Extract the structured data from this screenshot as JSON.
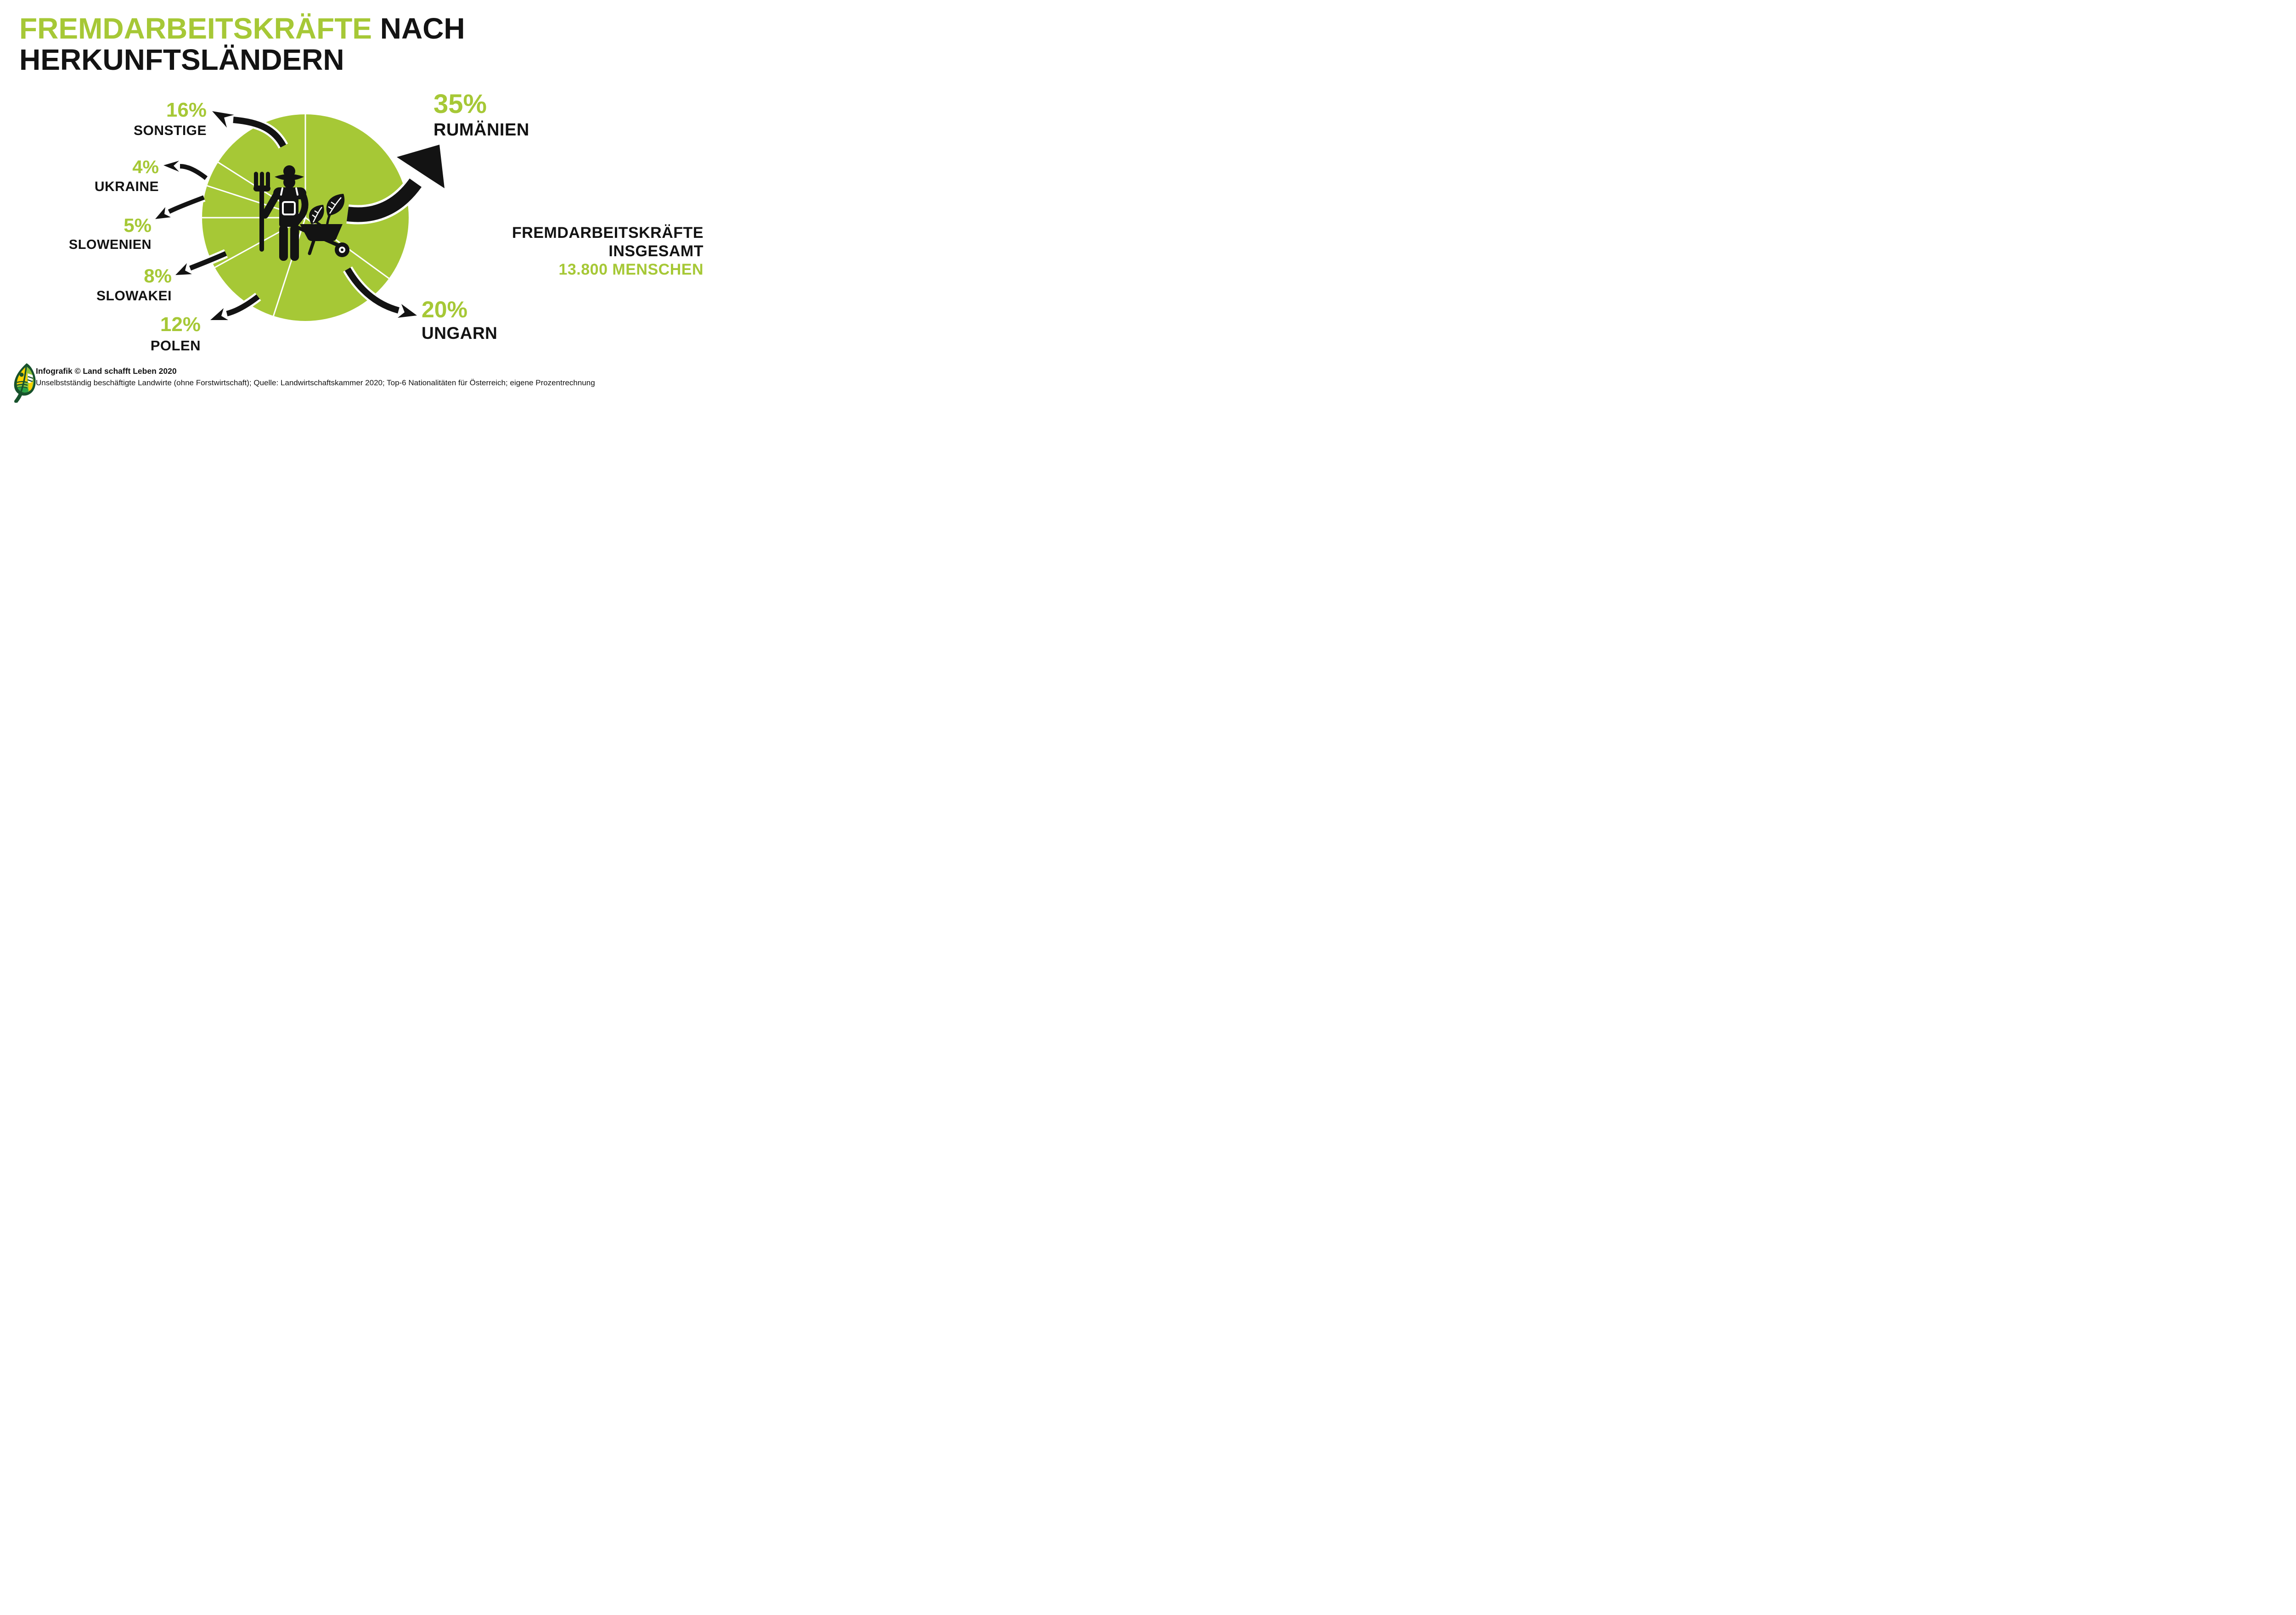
{
  "title": {
    "green": "FREMDARBEITSKRÄFTE",
    "black_rest": " NACH",
    "line2": "HERKUNFTSLÄNDERN"
  },
  "chart_data": {
    "type": "pie",
    "title": "FREMDARBEITSKRÄFTE NACH HERKUNFTSLÄNDERN",
    "unit": "percent",
    "start_angle_deg": 0,
    "direction": "clockwise",
    "grid": false,
    "legend_position": "around-pie",
    "slices": [
      {
        "label": "RUMÄNIEN",
        "value": 35,
        "pct_label": "35%"
      },
      {
        "label": "UNGARN",
        "value": 20,
        "pct_label": "20%"
      },
      {
        "label": "POLEN",
        "value": 12,
        "pct_label": "12%"
      },
      {
        "label": "SLOWAKEI",
        "value": 8,
        "pct_label": "8%"
      },
      {
        "label": "SLOWENIEN",
        "value": 5,
        "pct_label": "5%"
      },
      {
        "label": "UKRAINE",
        "value": 4,
        "pct_label": "4%"
      },
      {
        "label": "SONSTIGE",
        "value": 16,
        "pct_label": "16%"
      }
    ],
    "total": {
      "line1": "FREMDARBEITSKRÄFTE",
      "line2": "INSGESAMT",
      "line3": "13.800 MENSCHEN",
      "value": 13800,
      "unit_label": "Menschen"
    },
    "center_icon": "farmer-with-pitchfork-and-wheelbarrow-icon",
    "colors": {
      "pie_green": "#a6c836",
      "accent_green": "#a6c836",
      "text_black": "#131313",
      "divider_white": "#ffffff"
    }
  },
  "footer": {
    "logo_icon": "land-schafft-leben-leaf-logo",
    "credit": "Infografik © Land schafft Leben 2020",
    "source": "Unselbstständig beschäftigte Landwirte (ohne Forstwirtschaft); Quelle: Landwirtschaftskammer 2020; Top-6 Nationalitäten für Österreich; eigene Prozentrechnung"
  }
}
